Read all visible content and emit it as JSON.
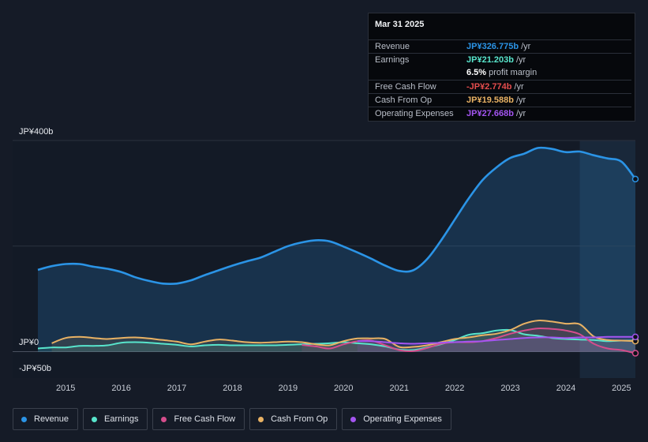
{
  "chart_data": {
    "type": "line",
    "x": [
      2014.5,
      2014.75,
      2015.0,
      2015.25,
      2015.5,
      2015.75,
      2016.0,
      2016.25,
      2016.5,
      2016.75,
      2017.0,
      2017.25,
      2017.5,
      2017.75,
      2018.0,
      2018.25,
      2018.5,
      2018.75,
      2019.0,
      2019.25,
      2019.5,
      2019.75,
      2020.0,
      2020.25,
      2020.5,
      2020.75,
      2021.0,
      2021.25,
      2021.5,
      2021.75,
      2022.0,
      2022.25,
      2022.5,
      2022.75,
      2023.0,
      2023.25,
      2023.5,
      2023.75,
      2024.0,
      2024.25,
      2024.5,
      2024.75,
      2025.0,
      2025.25
    ],
    "series": [
      {
        "name": "Revenue",
        "color": "#2b94e6",
        "values": [
          155,
          162,
          166,
          166,
          161,
          157,
          151,
          141,
          134,
          129,
          129,
          135,
          145,
          154,
          163,
          171,
          178,
          189,
          200,
          207,
          211,
          209,
          199,
          188,
          176,
          163,
          153,
          154,
          175,
          210,
          250,
          290,
          325,
          349,
          367,
          375,
          386,
          384,
          378,
          379,
          372,
          366,
          360,
          327
        ]
      },
      {
        "name": "Earnings",
        "color": "#58e5cc",
        "values": [
          6,
          8,
          8,
          11,
          11,
          12,
          17,
          18,
          17,
          15,
          13,
          10,
          12,
          13,
          12,
          12,
          12,
          12,
          13,
          14,
          15,
          16,
          18,
          16,
          14,
          10,
          4,
          3,
          8,
          14,
          22,
          32,
          35,
          40,
          41,
          33,
          30,
          26,
          24,
          23,
          22,
          20,
          21,
          21
        ]
      },
      {
        "name": "Free Cash Flow",
        "color": "#d54d8c",
        "values": [
          null,
          null,
          null,
          null,
          null,
          null,
          null,
          null,
          null,
          null,
          null,
          null,
          null,
          null,
          null,
          null,
          null,
          null,
          null,
          13,
          10,
          6,
          14,
          20,
          21,
          12,
          3,
          1,
          7,
          15,
          18,
          18,
          20,
          26,
          34,
          40,
          44,
          43,
          40,
          33,
          15,
          6,
          3,
          -3
        ]
      },
      {
        "name": "Cash From Op",
        "color": "#e9b264",
        "values": [
          null,
          16,
          26,
          28,
          26,
          24,
          26,
          27,
          25,
          22,
          19,
          14,
          19,
          23,
          21,
          18,
          17,
          18,
          19,
          18,
          14,
          12,
          20,
          25,
          25,
          24,
          9,
          9,
          12,
          18,
          24,
          27,
          31,
          34,
          41,
          53,
          59,
          57,
          53,
          52,
          29,
          22,
          21,
          20
        ]
      },
      {
        "name": "Operating Expenses",
        "color": "#a455f1",
        "values": [
          null,
          null,
          null,
          null,
          null,
          null,
          null,
          null,
          null,
          null,
          null,
          null,
          null,
          null,
          null,
          null,
          null,
          null,
          null,
          null,
          null,
          null,
          null,
          20,
          20,
          18,
          16,
          15,
          16,
          17,
          18,
          19,
          20,
          22,
          24,
          26,
          27,
          27,
          26,
          27,
          27,
          28,
          28,
          28
        ]
      }
    ],
    "xticks": [
      {
        "v": 2015,
        "label": "2015"
      },
      {
        "v": 2016,
        "label": "2016"
      },
      {
        "v": 2017,
        "label": "2017"
      },
      {
        "v": 2018,
        "label": "2018"
      },
      {
        "v": 2019,
        "label": "2019"
      },
      {
        "v": 2020,
        "label": "2020"
      },
      {
        "v": 2021,
        "label": "2021"
      },
      {
        "v": 2022,
        "label": "2022"
      },
      {
        "v": 2023,
        "label": "2023"
      },
      {
        "v": 2024,
        "label": "2024"
      },
      {
        "v": 2025,
        "label": "2025"
      }
    ],
    "xlim": [
      2014.5,
      2025.25
    ],
    "ylim": [
      -50,
      400
    ],
    "gridlines": [
      400,
      200,
      0
    ],
    "forecast_start": 2024.25,
    "ylabels": {
      "top": "JP¥400b",
      "zero": "JP¥0",
      "bottom": "-JP¥50b"
    }
  },
  "tooltip": {
    "date": "Mar 31 2025",
    "rows": [
      {
        "label": "Revenue",
        "value": "JP¥326.775b",
        "unit": "/yr",
        "color": "#2b94e6"
      },
      {
        "label": "Earnings",
        "value": "JP¥21.203b",
        "unit": "/yr",
        "color": "#58e5cc"
      },
      {
        "label": "",
        "value": "6.5%",
        "unit": "profit margin",
        "color": "#ffffff"
      },
      {
        "label": "Free Cash Flow",
        "value": "-JP¥2.774b",
        "unit": "/yr",
        "color": "#e54d4d"
      },
      {
        "label": "Cash From Op",
        "value": "JP¥19.588b",
        "unit": "/yr",
        "color": "#e9b264"
      },
      {
        "label": "Operating Expenses",
        "value": "JP¥27.668b",
        "unit": "/yr",
        "color": "#a455f1"
      }
    ]
  },
  "legend": [
    {
      "label": "Revenue",
      "color": "#2b94e6"
    },
    {
      "label": "Earnings",
      "color": "#58e5cc"
    },
    {
      "label": "Free Cash Flow",
      "color": "#d54d8c"
    },
    {
      "label": "Cash From Op",
      "color": "#e9b264"
    },
    {
      "label": "Operating Expenses",
      "color": "#a455f1"
    }
  ]
}
